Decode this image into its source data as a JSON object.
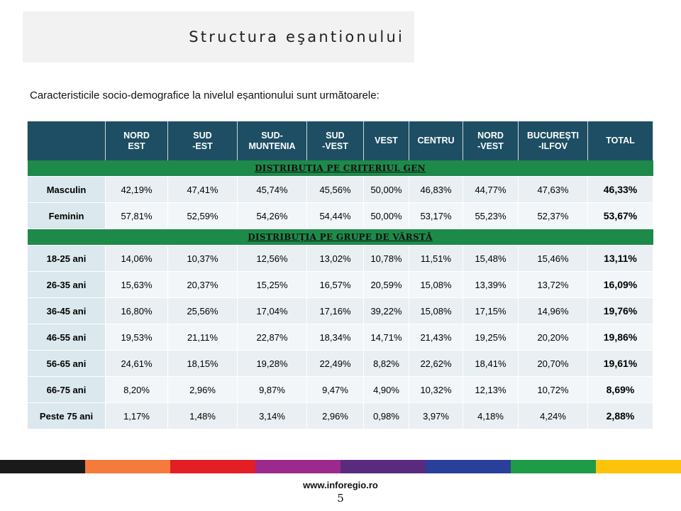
{
  "slide": {
    "title": "Structura eşantionului",
    "intro": "Caracteristicile socio-demografice la nivelul eșantionului sunt următoarele:"
  },
  "table": {
    "headers": [
      "",
      "NORD\nEST",
      "SUD\n-EST",
      "SUD-\nMUNTENIA",
      "SUD\n-VEST",
      "VEST",
      "CENTRU",
      "NORD\n-VEST",
      "BUCUREŞTI\n-ILFOV",
      "TOTAL"
    ],
    "sections": [
      {
        "title": "DISTRIBUŢIA PE CRITERIUL GEN",
        "rows": [
          {
            "label": "Masculin",
            "values": [
              "42,19%",
              "47,41%",
              "45,74%",
              "45,56%",
              "50,00%",
              "46,83%",
              "44,77%",
              "47,63%"
            ],
            "total": "46,33%"
          },
          {
            "label": "Feminin",
            "values": [
              "57,81%",
              "52,59%",
              "54,26%",
              "54,44%",
              "50,00%",
              "53,17%",
              "55,23%",
              "52,37%"
            ],
            "total": "53,67%"
          }
        ]
      },
      {
        "title": "DISTRIBUŢIA PE GRUPE DE VÂRSTĂ",
        "rows": [
          {
            "label": "18-25 ani",
            "values": [
              "14,06%",
              "10,37%",
              "12,56%",
              "13,02%",
              "10,78%",
              "11,51%",
              "15,48%",
              "15,46%"
            ],
            "total": "13,11%"
          },
          {
            "label": "26-35 ani",
            "values": [
              "15,63%",
              "20,37%",
              "15,25%",
              "16,57%",
              "20,59%",
              "15,08%",
              "13,39%",
              "13,72%"
            ],
            "total": "16,09%"
          },
          {
            "label": "36-45 ani",
            "values": [
              "16,80%",
              "25,56%",
              "17,04%",
              "17,16%",
              "39,22%",
              "15,08%",
              "17,15%",
              "14,96%"
            ],
            "total": "19,76%"
          },
          {
            "label": "46-55 ani",
            "values": [
              "19,53%",
              "21,11%",
              "22,87%",
              "18,34%",
              "14,71%",
              "21,43%",
              "19,25%",
              "20,20%"
            ],
            "total": "19,86%"
          },
          {
            "label": "56-65 ani",
            "values": [
              "24,61%",
              "18,15%",
              "19,28%",
              "22,49%",
              "8,82%",
              "22,62%",
              "18,41%",
              "20,70%"
            ],
            "total": "19,61%"
          },
          {
            "label": "66-75 ani",
            "values": [
              "8,20%",
              "2,96%",
              "9,87%",
              "9,47%",
              "4,90%",
              "10,32%",
              "12,13%",
              "10,72%"
            ],
            "total": "8,69%"
          },
          {
            "label": "Peste 75 ani",
            "values": [
              "1,17%",
              "1,48%",
              "3,14%",
              "2,96%",
              "0,98%",
              "3,97%",
              "4,18%",
              "4,24%"
            ],
            "total": "2,88%"
          }
        ]
      }
    ]
  },
  "colors": {
    "header_bg": "#1d4e63",
    "section_bg": "#1e8a4a",
    "footer_bar": [
      "#1a1a1a",
      "#f47b3c",
      "#e31e24",
      "#9b2a8c",
      "#5a2a7f",
      "#2a3f9b",
      "#1d9b47",
      "#fcc30a"
    ]
  },
  "footer": {
    "url": "www.inforegio.ro",
    "page": "5"
  }
}
